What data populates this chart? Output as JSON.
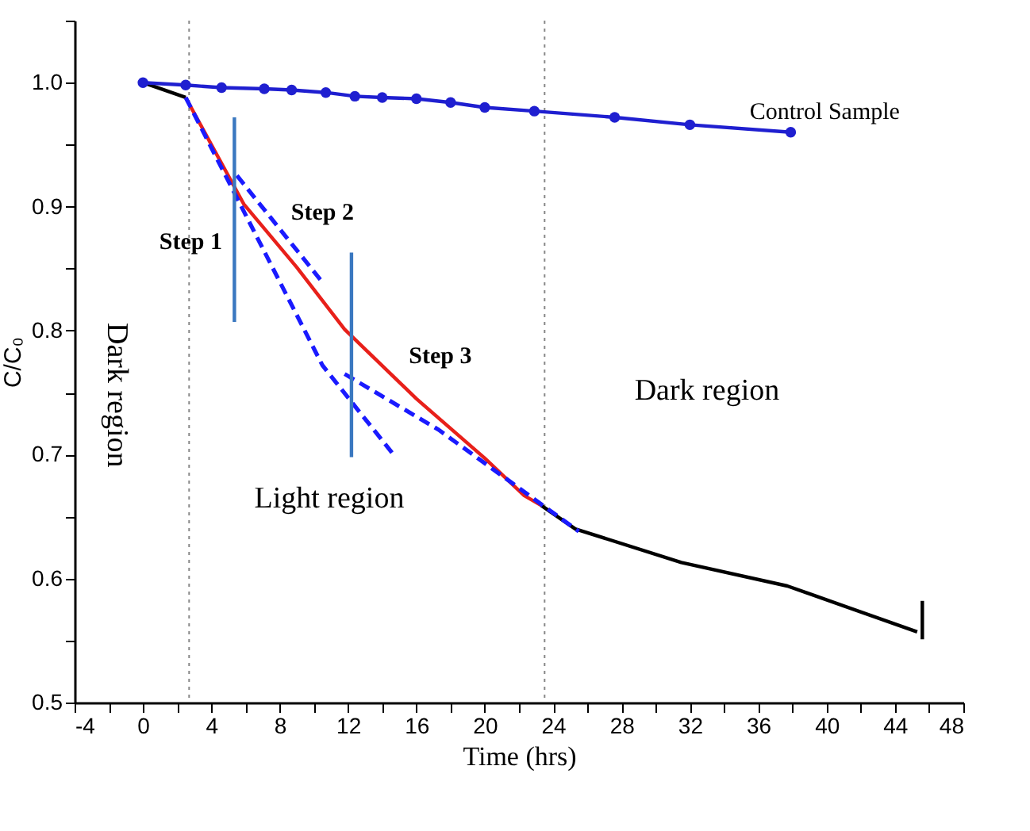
{
  "chart_data": {
    "type": "line",
    "xlabel": "Time (hrs)",
    "ylabel": "C/C₀",
    "xlim": [
      -4,
      48
    ],
    "ylim": [
      0.5,
      1.05
    ],
    "xticks": [
      -4,
      {
        "value": -2,
        "label": null
      },
      0,
      {
        "value": 2,
        "label": null
      },
      4,
      {
        "value": 6,
        "label": null
      },
      8,
      {
        "value": 10,
        "label": null
      },
      12,
      {
        "value": 14,
        "label": null
      },
      16,
      {
        "value": 18,
        "label": null
      },
      20,
      {
        "value": 22,
        "label": null
      },
      24,
      {
        "value": 26,
        "label": null
      },
      28,
      {
        "value": 30,
        "label": null
      },
      32,
      {
        "value": 34,
        "label": null
      },
      36,
      {
        "value": 38,
        "label": null
      },
      40,
      {
        "value": 42,
        "label": null
      },
      44,
      {
        "value": 46,
        "label": null
      },
      48
    ],
    "yticks": [
      0.5,
      {
        "value": 0.55,
        "label": null
      },
      0.6,
      {
        "value": 0.65,
        "label": null
      },
      0.7,
      {
        "value": 0.75,
        "label": null
      },
      0.8,
      {
        "value": 0.85,
        "label": null
      },
      0.9,
      {
        "value": 0.95,
        "label": null
      },
      {
        "value": 1,
        "label": "1.0"
      },
      {
        "value": 1.05,
        "label": null
      }
    ],
    "grid": false,
    "series": [
      {
        "color": "#000000",
        "x": [
          0,
          2.5
        ],
        "values": [
          1.0,
          0.988
        ]
      },
      {
        "color": "#000000",
        "x": [
          23.3,
          25.3,
          31.5,
          37.7,
          45.3
        ],
        "values": [
          0.659,
          0.64,
          0.613,
          0.594,
          0.557
        ]
      },
      {
        "color": "#000000",
        "x": [
          45.6,
          45.6
        ],
        "values": [
          0.582,
          0.551
        ]
      },
      {
        "color": "#e8201a",
        "x": [
          2.5,
          4,
          5.9,
          9,
          11.8,
          16,
          20,
          22.3,
          23.3
        ],
        "values": [
          0.988,
          0.95,
          0.902,
          0.851,
          0.801,
          0.745,
          0.697,
          0.667,
          0.659
        ]
      },
      {
        "color": "#1f1fd0",
        "marker": "circle",
        "x": [
          0,
          2.5,
          4.6,
          7.1,
          8.7,
          10.7,
          12.4,
          14,
          16,
          18,
          20,
          22.9,
          27.6,
          32,
          37.9
        ],
        "values": [
          1.0,
          0.998,
          0.996,
          0.995,
          0.994,
          0.992,
          0.989,
          0.988,
          0.987,
          0.984,
          0.98,
          0.977,
          0.972,
          0.966,
          0.96
        ]
      },
      {
        "color": "#1a1aff",
        "line_style": "dashed",
        "x": [
          2.5,
          10.5,
          14.6
        ],
        "values": [
          0.988,
          0.772,
          0.701
        ]
      },
      {
        "color": "#1a1aff",
        "line_style": "dashed",
        "x": [
          5.5,
          10.5
        ],
        "values": [
          0.925,
          0.839
        ]
      },
      {
        "color": "#1a1aff",
        "line_style": "dashed",
        "x": [
          11.8,
          17.3,
          25.5
        ],
        "values": [
          0.765,
          0.72,
          0.638
        ]
      },
      {
        "color": "#3a78c0",
        "x": [
          5.35,
          5.35
        ],
        "values": [
          0.972,
          0.807
        ]
      },
      {
        "color": "#3a78c0",
        "x": [
          12.2,
          12.2
        ],
        "values": [
          0.863,
          0.698
        ]
      }
    ],
    "ref_lines": [
      {
        "axis": "x",
        "value": 2.7,
        "color": "#888888",
        "line_style": "dotted"
      },
      {
        "axis": "x",
        "value": 23.5,
        "color": "#888888",
        "line_style": "dotted"
      }
    ],
    "annotations": [
      "Control Sample",
      "Step 1",
      "Step 2",
      "Step 3",
      "Dark region",
      "Light region",
      "Dark region"
    ]
  }
}
